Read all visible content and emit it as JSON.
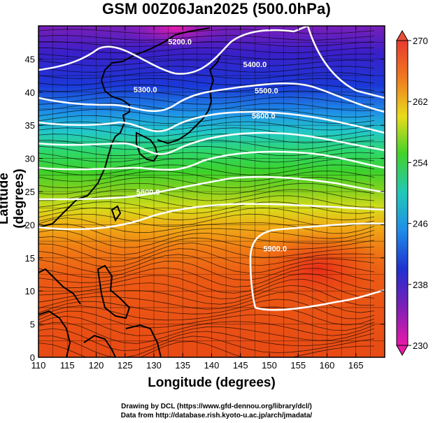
{
  "title": "GSM 00Z06Jan2025 (500.0hPa)",
  "xlabel": "Longitude (degrees)",
  "ylabel": "Latitude  (degrees)",
  "credit_line1": "Drawing by DCL (https://www.gfd-dennou.org/library/dcl/)",
  "credit_line2": "Data from http://database.rish.kyoto-u.ac.jp/arch/jmadata/",
  "map": {
    "lon_range": [
      110,
      170
    ],
    "lat_range": [
      0,
      50
    ],
    "lon_ticks": [
      110,
      115,
      120,
      125,
      130,
      135,
      140,
      145,
      150,
      155,
      160,
      165
    ],
    "lat_ticks": [
      0,
      5,
      10,
      15,
      20,
      25,
      30,
      35,
      40,
      45
    ],
    "contour_labels": [
      {
        "text": "5200.0",
        "lon": 134.5,
        "lat": 47.2
      },
      {
        "text": "5400.0",
        "lon": 147.5,
        "lat": 43.8
      },
      {
        "text": "5300.0",
        "lon": 128.5,
        "lat": 40.0
      },
      {
        "text": "5500.0",
        "lon": 149.5,
        "lat": 39.8
      },
      {
        "text": "5600.0",
        "lon": 149.0,
        "lat": 36.0
      },
      {
        "text": "5800.0",
        "lon": 129.0,
        "lat": 24.5
      },
      {
        "text": "5900.0",
        "lon": 151.0,
        "lat": 16.0
      }
    ]
  },
  "colorbar": {
    "tick_labels": [
      "270",
      "262",
      "254",
      "246",
      "238",
      "230"
    ],
    "min": 230,
    "max": 270
  }
}
